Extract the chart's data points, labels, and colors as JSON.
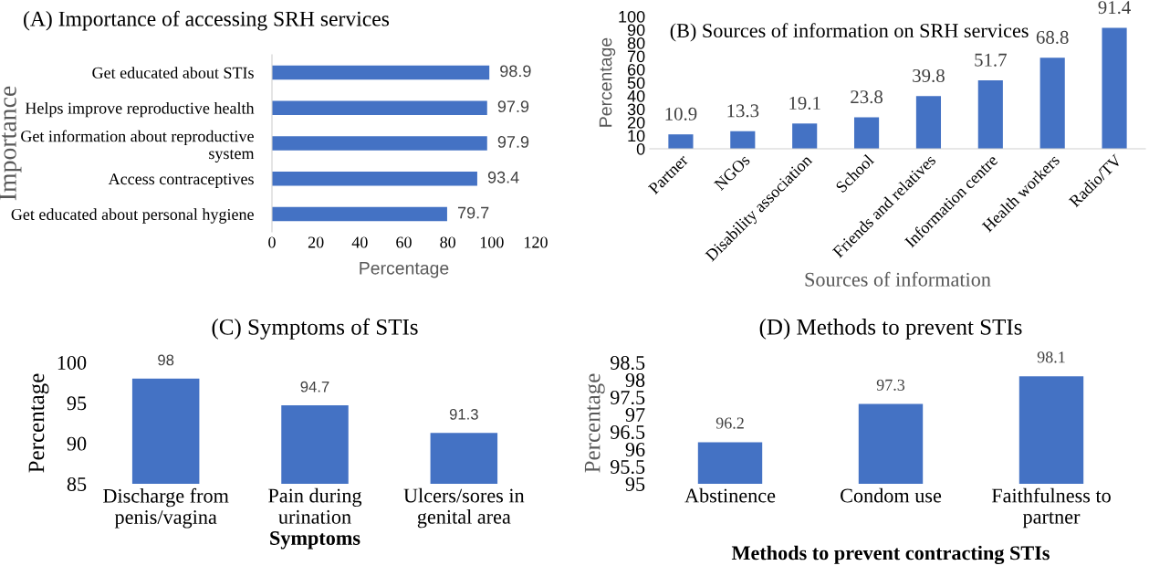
{
  "chart_data": [
    {
      "type": "bar",
      "orientation": "horizontal",
      "title": "(A) Importance of accessing SRH services",
      "xlabel": "Percentage",
      "ylabel": "Importance",
      "categories": [
        "Get educated about STIs",
        "Helps improve reproductive health",
        "Get information about reproductive\nsystem",
        "Access contraceptives",
        "Get educated about personal hygiene"
      ],
      "values": [
        98.9,
        97.9,
        97.9,
        93.4,
        79.7
      ],
      "color": "#4472c4",
      "xlim": [
        0,
        120
      ],
      "xticks": [
        0,
        20,
        40,
        60,
        80,
        100,
        120
      ],
      "data_labels": true,
      "grid": false,
      "legend": false
    },
    {
      "type": "bar",
      "title": "(B) Sources of information on SRH services",
      "xlabel": "Sources of information",
      "ylabel": "Percentage",
      "categories": [
        "Partner",
        "NGOs",
        "Disability association",
        "School",
        "Friends and relatives",
        "Information centre",
        "Health workers",
        "Radio/TV"
      ],
      "values": [
        10.9,
        13.3,
        19.1,
        23.8,
        39.8,
        51.7,
        68.8,
        91.4
      ],
      "color": "#4472c4",
      "ylim": [
        0,
        100
      ],
      "yticks": [
        0,
        10,
        20,
        30,
        40,
        50,
        60,
        70,
        80,
        90,
        100
      ],
      "data_labels": true,
      "grid": false,
      "legend": false
    },
    {
      "type": "bar",
      "title": "(C) Symptoms of STIs",
      "xlabel": "Symptoms",
      "ylabel": "Percentage",
      "categories": [
        "Discharge from\npenis/vagina",
        "Pain during\nurination",
        "Ulcers/sores in\ngenital area"
      ],
      "values": [
        98,
        94.7,
        91.3
      ],
      "color": "#4472c4",
      "ylim": [
        85,
        100
      ],
      "yticks": [
        85,
        90,
        95,
        100
      ],
      "data_labels": true,
      "grid": false,
      "legend": false
    },
    {
      "type": "bar",
      "title": "(D) Methods to prevent STIs",
      "xlabel": "Methods to prevent contracting STIs",
      "ylabel": "Percentage",
      "categories": [
        "Abstinence",
        "Condom use",
        "Faithfulness to\npartner"
      ],
      "values": [
        96.2,
        97.3,
        98.1
      ],
      "color": "#4472c4",
      "ylim": [
        95,
        98.5
      ],
      "yticks": [
        95,
        95.5,
        96,
        96.5,
        97,
        97.5,
        98,
        98.5
      ],
      "data_labels": true,
      "grid": false,
      "legend": false
    }
  ]
}
